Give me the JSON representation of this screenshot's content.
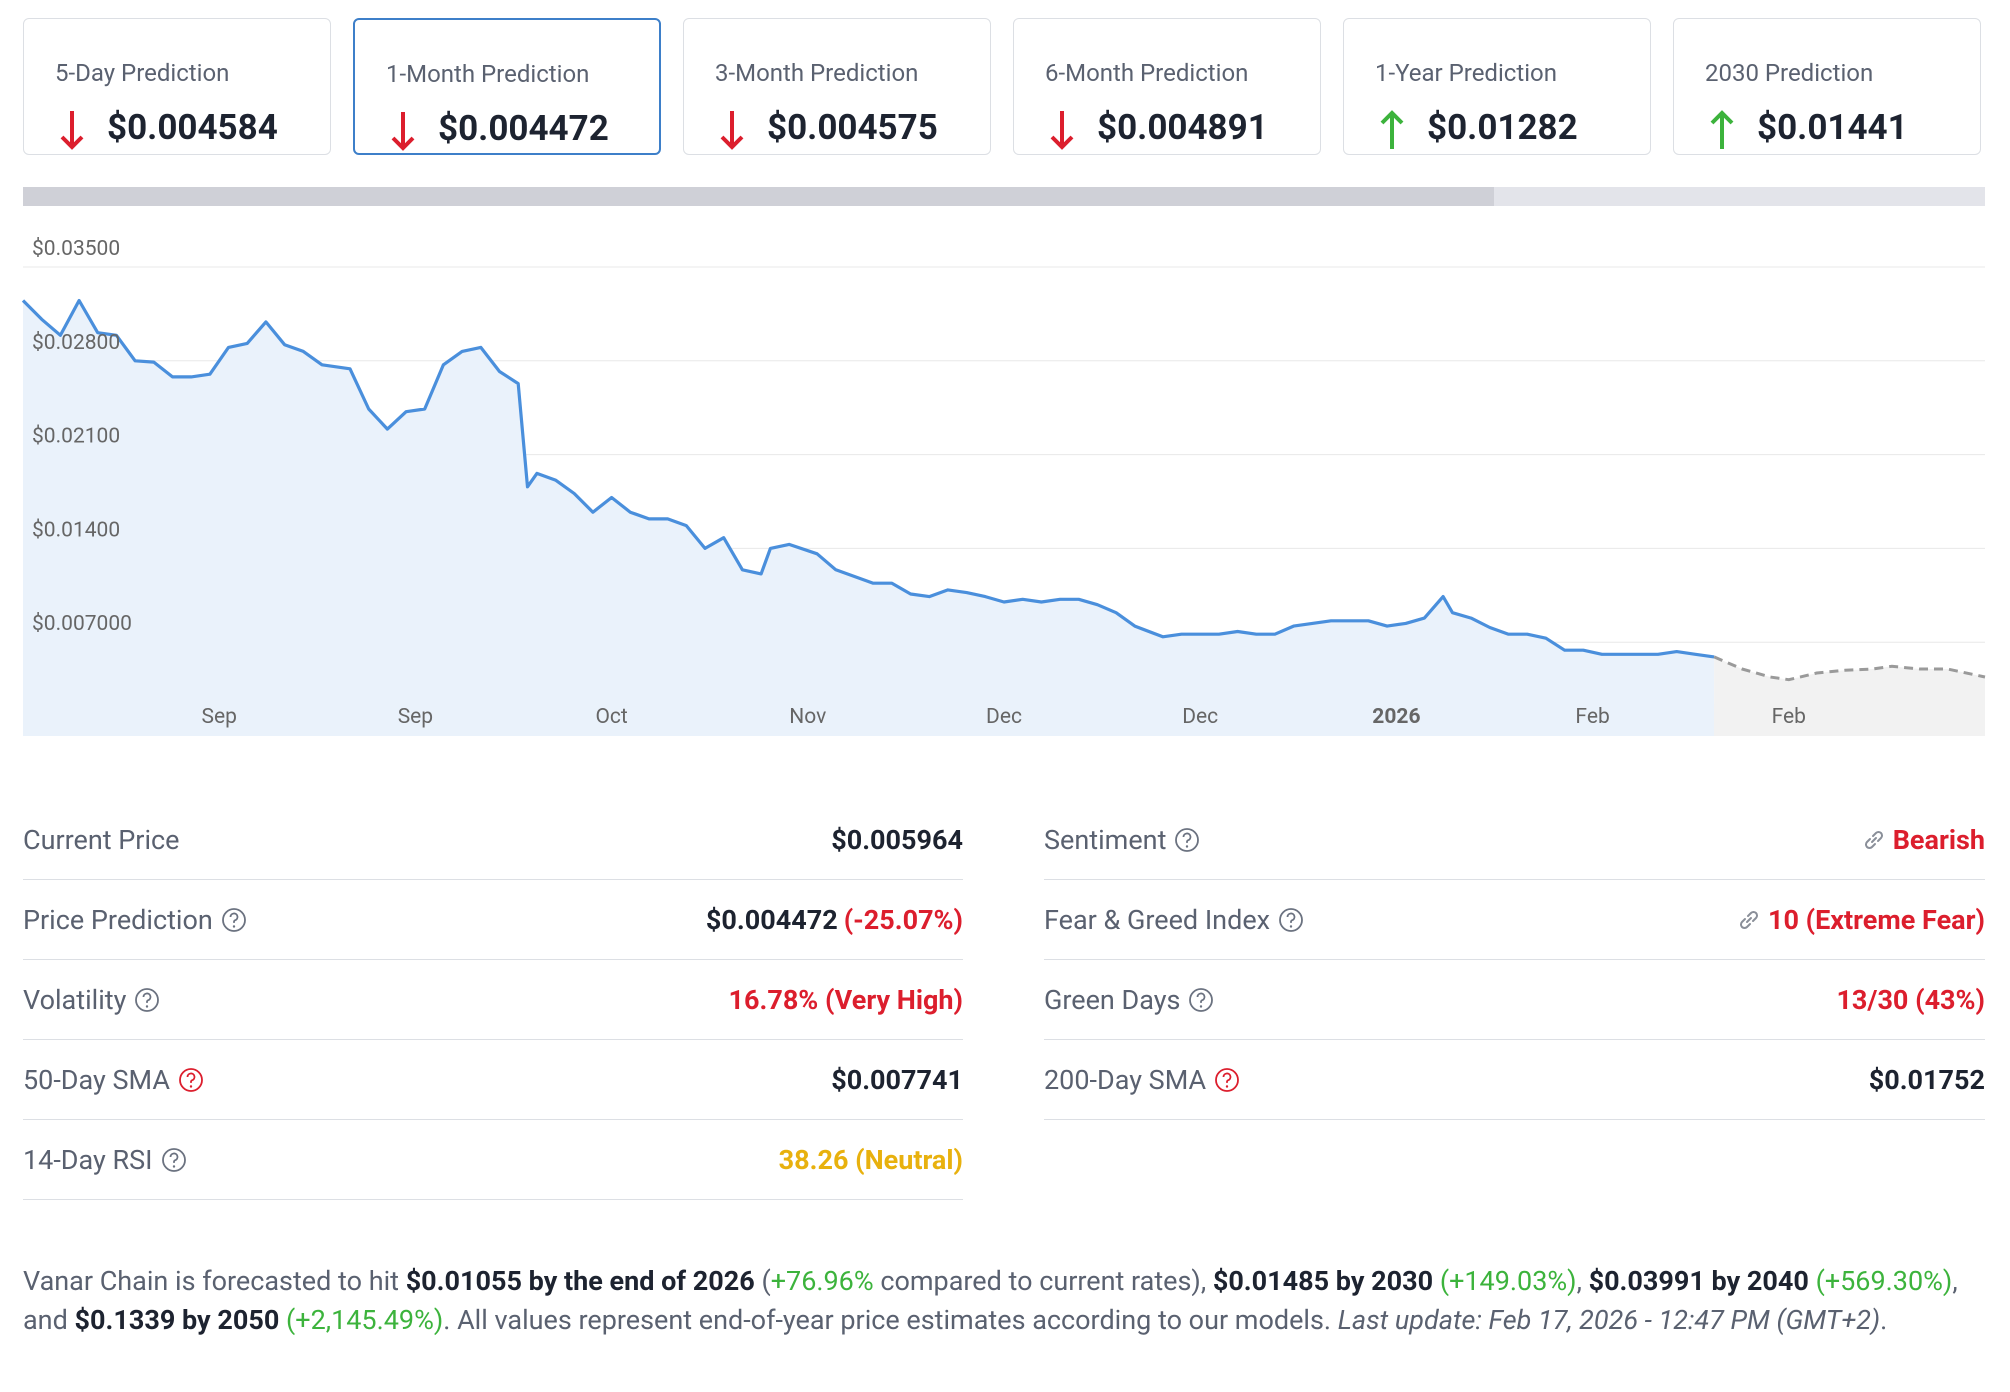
{
  "cards": [
    {
      "title": "5-Day Prediction",
      "value": "$0.004584",
      "trend": "down"
    },
    {
      "title": "1-Month Prediction",
      "value": "$0.004472",
      "trend": "down",
      "active": true
    },
    {
      "title": "3-Month Prediction",
      "value": "$0.004575",
      "trend": "down"
    },
    {
      "title": "6-Month Prediction",
      "value": "$0.004891",
      "trend": "down"
    },
    {
      "title": "1-Year Prediction",
      "value": "$0.01282",
      "trend": "up"
    },
    {
      "title": "2030 Prediction",
      "value": "$0.01441",
      "trend": "up"
    }
  ],
  "chart_data": {
    "type": "line",
    "xlim": [
      0,
      210
    ],
    "ylim": [
      0,
      0.035
    ],
    "yticks": [
      {
        "value": 0.035,
        "label": "$0.03500"
      },
      {
        "value": 0.028,
        "label": "$0.02800"
      },
      {
        "value": 0.021,
        "label": "$0.02100"
      },
      {
        "value": 0.014,
        "label": "$0.01400"
      },
      {
        "value": 0.007,
        "label": "$0.007000"
      }
    ],
    "xticks": [
      {
        "value": 21,
        "label": "Sep"
      },
      {
        "value": 42,
        "label": "Sep"
      },
      {
        "value": 63,
        "label": "Oct"
      },
      {
        "value": 84,
        "label": "Nov"
      },
      {
        "value": 105,
        "label": "Dec"
      },
      {
        "value": 126,
        "label": "Dec"
      },
      {
        "value": 147,
        "label": "2026"
      },
      {
        "value": 168,
        "label": "Feb"
      },
      {
        "value": 189,
        "label": "Feb"
      }
    ],
    "grid": true,
    "series": [
      {
        "color": "#4a8fdc",
        "fill": "#eaf2fb",
        "dashed": false,
        "x": [
          0,
          2,
          4,
          6,
          8,
          10,
          12,
          14,
          16,
          18,
          20,
          22,
          24,
          26,
          28,
          30,
          32,
          35,
          37,
          39,
          41,
          43,
          45,
          47,
          49,
          51,
          53,
          54,
          55,
          57,
          59,
          61,
          63,
          65,
          67,
          69,
          71,
          73,
          75,
          77,
          79,
          80,
          82,
          85,
          87,
          89,
          91,
          93,
          95,
          97,
          99,
          101,
          103,
          105,
          107,
          109,
          111,
          113,
          115,
          117,
          119,
          122,
          124,
          126,
          128,
          130,
          132,
          134,
          136,
          138,
          140,
          142,
          144,
          146,
          148,
          150,
          152,
          153,
          155,
          157,
          159,
          161,
          163,
          165,
          167,
          169,
          171,
          173,
          175,
          177,
          179,
          181
        ],
        "values": [
          0.0325,
          0.0311,
          0.0299,
          0.0325,
          0.0301,
          0.0299,
          0.028,
          0.0279,
          0.0268,
          0.0268,
          0.027,
          0.029,
          0.0293,
          0.0309,
          0.0292,
          0.0287,
          0.0277,
          0.0274,
          0.0244,
          0.0229,
          0.0242,
          0.0244,
          0.0277,
          0.0287,
          0.029,
          0.0272,
          0.0263,
          0.0186,
          0.0196,
          0.0191,
          0.0181,
          0.0167,
          0.0178,
          0.0167,
          0.0162,
          0.0162,
          0.0157,
          0.014,
          0.0148,
          0.0124,
          0.0121,
          0.014,
          0.0143,
          0.0136,
          0.0124,
          0.0119,
          0.0114,
          0.0114,
          0.0106,
          0.0104,
          0.0109,
          0.0107,
          0.0104,
          0.01,
          0.0102,
          0.01,
          0.0102,
          0.0102,
          0.0098,
          0.0092,
          0.0082,
          0.0074,
          0.0076,
          0.0076,
          0.0076,
          0.0078,
          0.0076,
          0.0076,
          0.0082,
          0.0084,
          0.0086,
          0.0086,
          0.0086,
          0.0082,
          0.0084,
          0.0088,
          0.0104,
          0.0092,
          0.0088,
          0.0081,
          0.0076,
          0.0076,
          0.0073,
          0.0064,
          0.0064,
          0.0061,
          0.0061,
          0.0061,
          0.0061,
          0.0063,
          0.0061,
          0.0059
        ]
      },
      {
        "color": "#9a9a9a",
        "fill": "#f2f2f2",
        "dashed": true,
        "x": [
          181,
          184,
          187,
          189,
          192,
          195,
          198,
          200,
          203,
          206,
          210
        ],
        "values": [
          0.0059,
          0.005,
          0.0044,
          0.0042,
          0.0047,
          0.0049,
          0.005,
          0.0052,
          0.005,
          0.005,
          0.0044
        ]
      }
    ]
  },
  "stats": {
    "left": [
      {
        "label": "Current Price",
        "value": "$0.005964",
        "color": "#1d2330"
      },
      {
        "label": "Price Prediction",
        "value": "$0.004472",
        "extra": "(-25.07%)",
        "color": "#1d2330",
        "extra_color": "#dc1e2d",
        "help": "#6b7280"
      },
      {
        "label": "Volatility",
        "value": "16.78% (Very High)",
        "color": "#dc1e2d",
        "help": "#6b7280"
      },
      {
        "label": "50-Day SMA",
        "value": "$0.007741",
        "color": "#1d2330",
        "help": "#dc1e2d"
      },
      {
        "label": "14-Day RSI",
        "value": "38.26 (Neutral)",
        "color": "#e8b10e",
        "help": "#6b7280"
      }
    ],
    "right": [
      {
        "label": "Sentiment",
        "value": "Bearish",
        "color": "#dc1e2d",
        "help": "#6b7280",
        "link": true
      },
      {
        "label": "Fear & Greed Index",
        "value": "10 (Extreme Fear)",
        "color": "#dc1e2d",
        "help": "#6b7280",
        "link": true
      },
      {
        "label": "Green Days",
        "value": "13/30 (43%)",
        "color": "#dc1e2d",
        "help": "#6b7280"
      },
      {
        "label": "200-Day SMA",
        "value": "$0.01752",
        "color": "#1d2330",
        "help": "#dc1e2d"
      }
    ]
  },
  "footer": [
    {
      "text": "Vanar Chain is forecasted to hit ",
      "style": "plain"
    },
    {
      "text": "$0.01055 by the end of 2026",
      "style": "bold"
    },
    {
      "text": " (",
      "style": "plain"
    },
    {
      "text": "+76.96%",
      "style": "green"
    },
    {
      "text": " compared to current rates), ",
      "style": "plain"
    },
    {
      "text": "$0.01485 by 2030",
      "style": "bold"
    },
    {
      "text": " (+149.03%)",
      "style": "green"
    },
    {
      "text": ", ",
      "style": "plain"
    },
    {
      "text": "$0.03991 by 2040",
      "style": "bold"
    },
    {
      "text": " (+569.30%)",
      "style": "green"
    },
    {
      "text": ", and ",
      "style": "plain"
    },
    {
      "text": "$0.1339 by 2050",
      "style": "bold"
    },
    {
      "text": " (+2,145.49%)",
      "style": "green"
    },
    {
      "text": ". All values represent end-of-year price estimates according to our models. ",
      "style": "plain"
    },
    {
      "text": "Last update: Feb 17, 2026 - 12:47 PM (GMT+2)",
      "style": "italic"
    },
    {
      "text": ".",
      "style": "plain"
    }
  ]
}
